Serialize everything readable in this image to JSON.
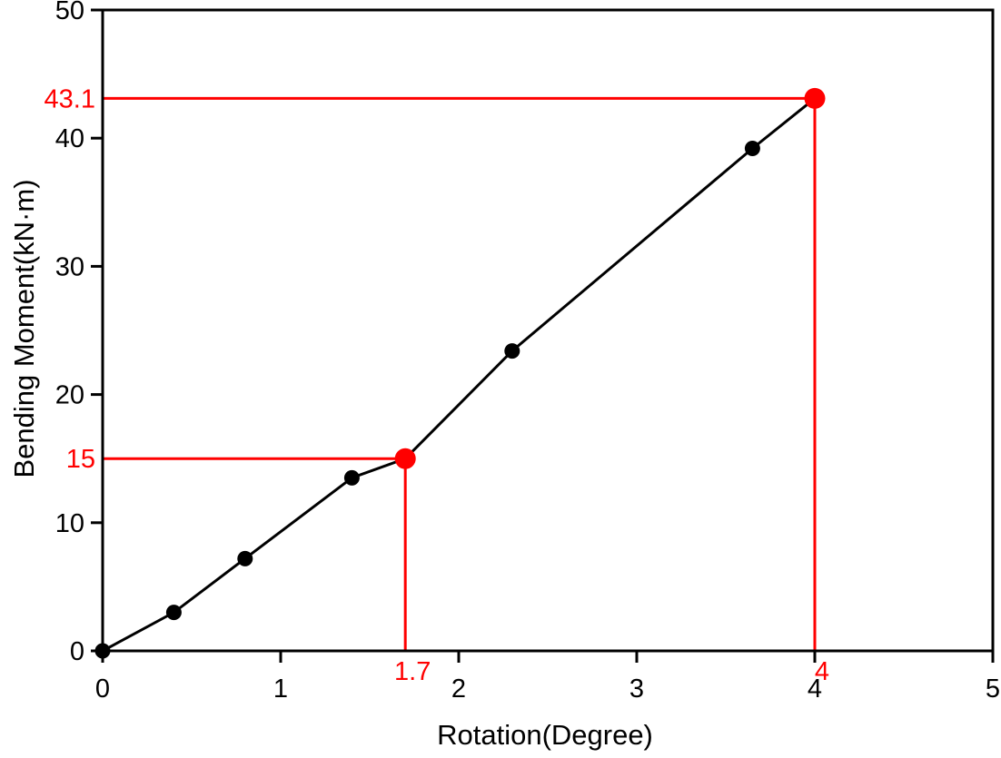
{
  "chart_data": {
    "type": "line",
    "title": "",
    "xlabel": "Rotation(Degree)",
    "ylabel": "Bending Moment(kN·m)",
    "xlim": [
      0,
      5
    ],
    "ylim": [
      0,
      50
    ],
    "xticks": [
      "0",
      "1",
      "2",
      "3",
      "4",
      "5"
    ],
    "yticks": [
      "0",
      "10",
      "20",
      "30",
      "40",
      "50"
    ],
    "grid": false,
    "legend": false,
    "colors": {
      "line": "#000000",
      "marker": "#000000",
      "highlight": "#ff0000",
      "axis": "#000000",
      "background": "#ffffff"
    },
    "series": [
      {
        "name": "moment-rotation-curve",
        "line_points": [
          [
            0,
            0
          ],
          [
            0.4,
            3.0
          ],
          [
            0.8,
            7.2
          ],
          [
            1.4,
            13.5
          ],
          [
            1.7,
            15
          ],
          [
            2.3,
            23.4
          ],
          [
            3.65,
            39.2
          ],
          [
            4,
            43.1
          ]
        ],
        "marker_points": [
          [
            0,
            0
          ],
          [
            0.4,
            3.0
          ],
          [
            0.8,
            7.2
          ],
          [
            1.4,
            13.5
          ],
          [
            2.3,
            23.4
          ],
          [
            3.65,
            39.2
          ]
        ]
      }
    ],
    "annotations": [
      {
        "x": 1.7,
        "y": 15,
        "x_label": "1.7",
        "y_label": "15",
        "color": "#ff0000"
      },
      {
        "x": 4,
        "y": 43.1,
        "x_label": "4",
        "y_label": "43.1",
        "color": "#ff0000"
      }
    ]
  }
}
